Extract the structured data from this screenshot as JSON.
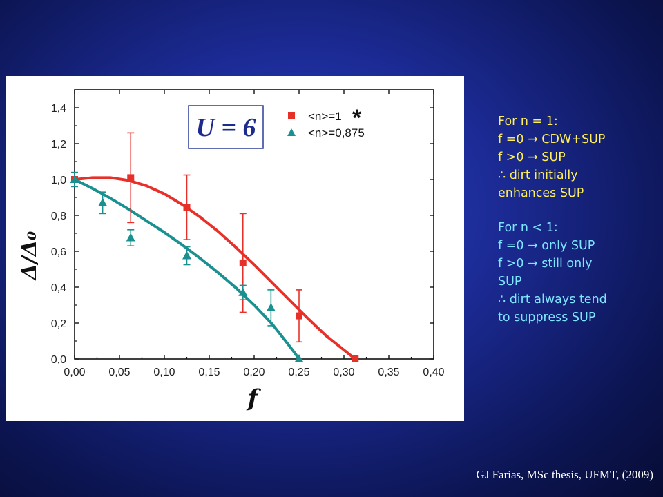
{
  "notes": {
    "n1": {
      "heading": "For n = 1:",
      "line1": "f =0 → CDW+SUP",
      "line2": "f >0 → SUP",
      "line3": "∴ dirt initially",
      "line4": "enhances SUP"
    },
    "nlt1": {
      "heading": "For n < 1:",
      "line1": "f =0 → only SUP",
      "line2": "f >0 → still only",
      "line3": "SUP",
      "line4": "∴ dirt always tend",
      "line5": "to suppress SUP"
    }
  },
  "citation": "GJ Farias, MSc thesis, UFMT, (2009)",
  "colors": {
    "series1": "#e8302b",
    "series2": "#1a9090",
    "note_yellow": "#ffef5a",
    "note_cyan": "#7fe6ff"
  },
  "chart_data": {
    "type": "scatter",
    "title": "",
    "xlabel": "f",
    "ylabel": "Δ/Δ₀",
    "annotation": "U = 6",
    "legend_star": "*",
    "legend_placement": "top-right",
    "grid": false,
    "xlim": [
      0.0,
      0.4
    ],
    "ylim": [
      0.0,
      1.5
    ],
    "x_ticks": [
      "0,00",
      "0,05",
      "0,10",
      "0,15",
      "0,20",
      "0,25",
      "0,30",
      "0,35",
      "0,40"
    ],
    "y_ticks": [
      "0,0",
      "0,2",
      "0,4",
      "0,6",
      "0,8",
      "1,0",
      "1,2",
      "1,4"
    ],
    "series": [
      {
        "name": "<n>=1",
        "marker": "square",
        "color": "#e8302b",
        "points": [
          {
            "x": 0.0,
            "y": 1.0,
            "err": 0
          },
          {
            "x": 0.0625,
            "y": 1.01,
            "err": 0.25
          },
          {
            "x": 0.125,
            "y": 0.845,
            "err": 0.18
          },
          {
            "x": 0.1875,
            "y": 0.535,
            "err": 0.275
          },
          {
            "x": 0.25,
            "y": 0.24,
            "err": 0.145
          },
          {
            "x": 0.3125,
            "y": 0.0,
            "err": 0
          }
        ],
        "fit": [
          [
            0.0,
            1.0
          ],
          [
            0.02,
            1.01
          ],
          [
            0.04,
            1.01
          ],
          [
            0.06,
            0.995
          ],
          [
            0.08,
            0.965
          ],
          [
            0.1,
            0.92
          ],
          [
            0.12,
            0.86
          ],
          [
            0.14,
            0.79
          ],
          [
            0.16,
            0.71
          ],
          [
            0.18,
            0.62
          ],
          [
            0.2,
            0.525
          ],
          [
            0.22,
            0.425
          ],
          [
            0.24,
            0.325
          ],
          [
            0.26,
            0.225
          ],
          [
            0.28,
            0.13
          ],
          [
            0.3,
            0.05
          ],
          [
            0.3125,
            0.0
          ]
        ]
      },
      {
        "name": "<n>=0,875",
        "marker": "triangle",
        "color": "#1a9090",
        "points": [
          {
            "x": 0.0,
            "y": 1.0,
            "err": 0.04
          },
          {
            "x": 0.03125,
            "y": 0.87,
            "err": 0.06
          },
          {
            "x": 0.0625,
            "y": 0.675,
            "err": 0.045
          },
          {
            "x": 0.125,
            "y": 0.575,
            "err": 0.05
          },
          {
            "x": 0.1875,
            "y": 0.37,
            "err": 0.04
          },
          {
            "x": 0.21875,
            "y": 0.285,
            "err": 0.1
          },
          {
            "x": 0.25,
            "y": 0.0,
            "err": 0
          }
        ],
        "fit": [
          [
            0.0,
            1.0
          ],
          [
            0.02,
            0.95
          ],
          [
            0.04,
            0.895
          ],
          [
            0.06,
            0.835
          ],
          [
            0.08,
            0.77
          ],
          [
            0.1,
            0.705
          ],
          [
            0.12,
            0.635
          ],
          [
            0.14,
            0.56
          ],
          [
            0.16,
            0.48
          ],
          [
            0.18,
            0.395
          ],
          [
            0.2,
            0.3
          ],
          [
            0.22,
            0.195
          ],
          [
            0.235,
            0.1
          ],
          [
            0.245,
            0.035
          ],
          [
            0.25,
            0.0
          ]
        ]
      }
    ]
  }
}
